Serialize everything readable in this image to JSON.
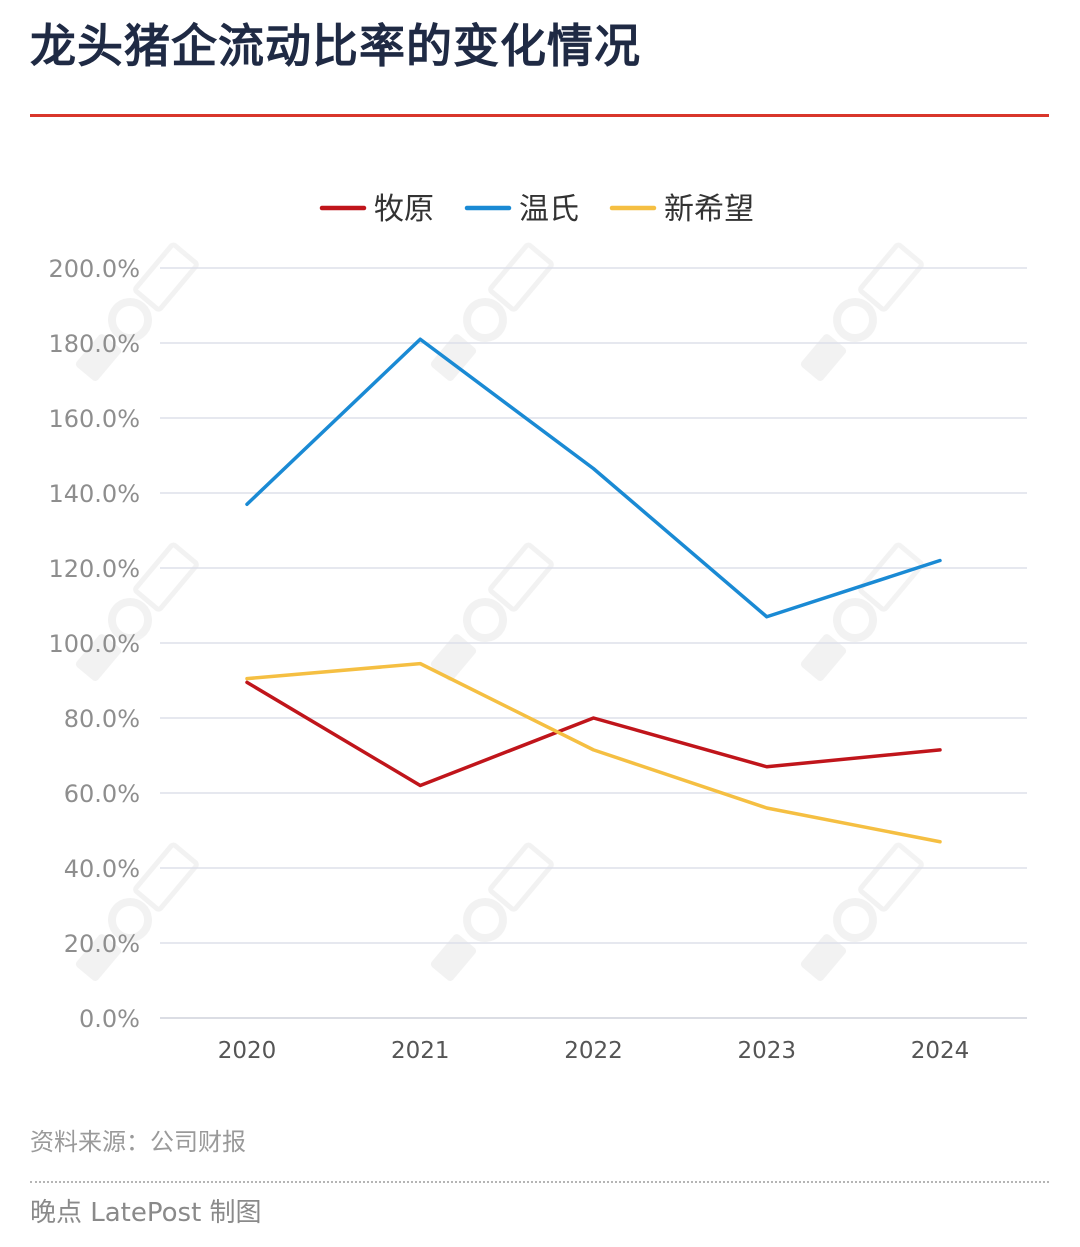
{
  "title": "龙头猪企流动比率的变化情况",
  "source": "资料来源：公司财报",
  "credit": "晚点 LatePost 制图",
  "chart_data": {
    "type": "line",
    "title": "龙头猪企流动比率的变化情况",
    "xlabel": "",
    "ylabel": "",
    "categories": [
      "2020",
      "2021",
      "2022",
      "2023",
      "2024"
    ],
    "ylim": [
      0,
      200
    ],
    "yticks": [
      0,
      20,
      40,
      60,
      80,
      100,
      120,
      140,
      160,
      180,
      200
    ],
    "ytick_labels": [
      "0.0%",
      "20.0%",
      "40.0%",
      "60.0%",
      "80.0%",
      "100.0%",
      "120.0%",
      "140.0%",
      "160.0%",
      "180.0%",
      "200.0%"
    ],
    "grid": true,
    "legend_position": "top-center",
    "series": [
      {
        "name": "牧原",
        "color": "#c0151b",
        "values": [
          89.5,
          62.0,
          80.0,
          67.0,
          71.5
        ]
      },
      {
        "name": "温氏",
        "color": "#1a8ad4",
        "values": [
          137.0,
          181.0,
          146.5,
          107.0,
          122.0
        ]
      },
      {
        "name": "新希望",
        "color": "#f5bf42",
        "values": [
          90.5,
          94.5,
          71.5,
          56.0,
          47.0
        ]
      }
    ]
  },
  "colors": {
    "accent": "#d9362b",
    "title": "#1f2a44",
    "grid": "#dde0ea",
    "axis_text": "#8e8e8e"
  }
}
